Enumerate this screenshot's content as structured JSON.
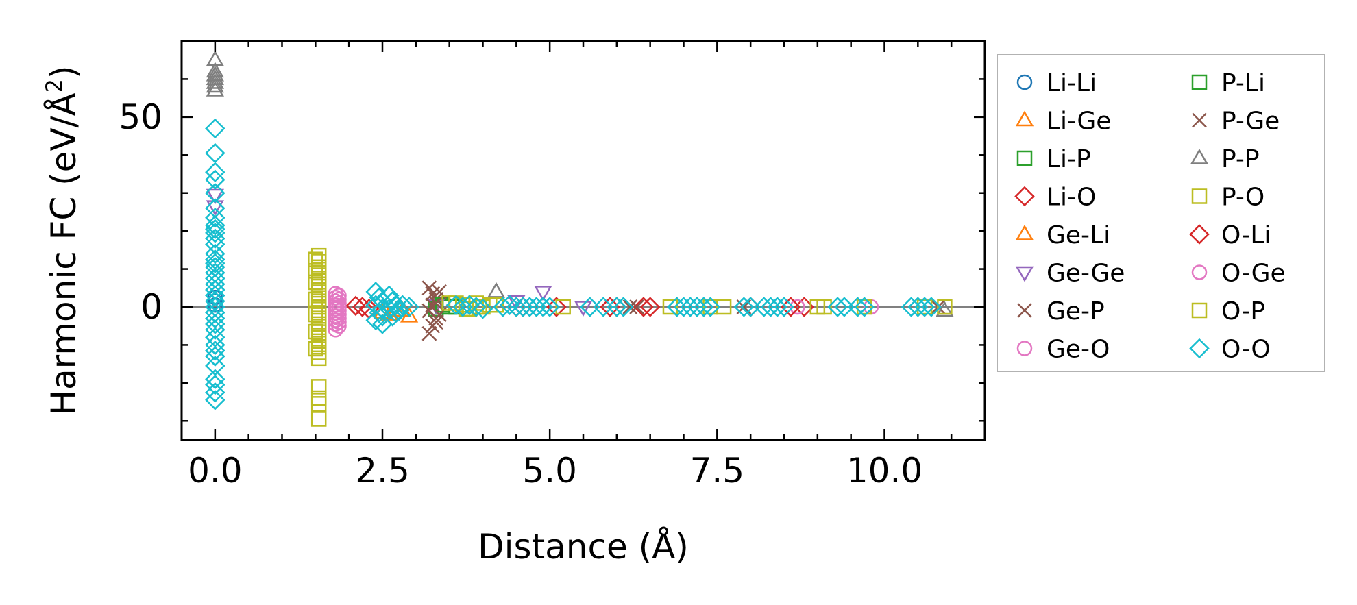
{
  "chart_data": {
    "type": "scatter",
    "title": "",
    "xlabel": "Distance (Å)",
    "ylabel": "Harmonic FC (eV/Å²)",
    "ylabel_parts": {
      "base": "Harmonic FC (eV/Å",
      "sup": "2",
      "close": ")"
    },
    "xlim": [
      -0.5,
      11.5
    ],
    "ylim": [
      -35,
      70
    ],
    "x_ticks": [
      0.0,
      2.5,
      5.0,
      7.5,
      10.0
    ],
    "x_tick_labels": [
      "0.0",
      "2.5",
      "5.0",
      "7.5",
      "10.0"
    ],
    "x_minor_step": 0.5,
    "y_ticks": [
      0,
      50
    ],
    "y_tick_labels": [
      "0",
      "50"
    ],
    "y_minor_step": 10,
    "grid": false,
    "zero_line": true,
    "legend_position": "outside-right",
    "legend_columns": 2,
    "series": [
      {
        "name": "Li-Li",
        "color": "#1f77b4",
        "marker": "circle",
        "points": [
          [
            0,
            2.5
          ],
          [
            0,
            1.5
          ],
          [
            0,
            0.5
          ]
        ]
      },
      {
        "name": "Li-Ge",
        "color": "#ff7f0e",
        "marker": "triangle-up",
        "points": [
          [
            2.5,
            -1.5
          ],
          [
            2.9,
            -2.5
          ],
          [
            2.7,
            -1.0
          ]
        ]
      },
      {
        "name": "Li-P",
        "color": "#2ca02c",
        "marker": "square",
        "points": [
          [
            3.3,
            -0.5
          ],
          [
            3.5,
            0
          ]
        ]
      },
      {
        "name": "Li-O",
        "color": "#d62728",
        "marker": "diamond",
        "points": [
          [
            2.1,
            0.3
          ],
          [
            2.3,
            -0.5
          ],
          [
            4.5,
            0
          ],
          [
            5.1,
            0
          ],
          [
            6.0,
            0
          ],
          [
            6.4,
            0
          ],
          [
            8.0,
            0
          ],
          [
            8.8,
            0
          ]
        ]
      },
      {
        "name": "Ge-Li",
        "color": "#ff7f0e",
        "marker": "triangle-up",
        "points": [
          [
            2.8,
            -1.0
          ],
          [
            2.6,
            -2.0
          ]
        ]
      },
      {
        "name": "Ge-Ge",
        "color": "#9467bd",
        "marker": "triangle-down",
        "points": [
          [
            0,
            29.5
          ],
          [
            0,
            26.5
          ],
          [
            4.5,
            1.5
          ],
          [
            4.9,
            4.0
          ],
          [
            3.3,
            0.5
          ],
          [
            5.5,
            0
          ]
        ]
      },
      {
        "name": "Ge-P",
        "color": "#8c564b",
        "marker": "x",
        "points": [
          [
            3.2,
            5.0
          ],
          [
            3.25,
            3.5
          ],
          [
            3.3,
            2.0
          ],
          [
            3.25,
            0.5
          ],
          [
            3.2,
            -1.0
          ],
          [
            3.3,
            -3.0
          ],
          [
            3.25,
            -5.0
          ],
          [
            3.2,
            -7.0
          ],
          [
            6.2,
            0
          ],
          [
            7.9,
            0
          ],
          [
            10.8,
            0
          ]
        ]
      },
      {
        "name": "Ge-O",
        "color": "#e377c2",
        "marker": "circle",
        "points": [
          [
            1.8,
            3.5
          ],
          [
            1.8,
            2.5
          ],
          [
            1.8,
            1.5
          ],
          [
            1.8,
            0.5
          ],
          [
            1.8,
            -0.5
          ],
          [
            1.8,
            -1.5
          ],
          [
            1.8,
            -2.5
          ],
          [
            1.8,
            -3.5
          ],
          [
            1.8,
            -4.5
          ],
          [
            1.8,
            -6.0
          ],
          [
            8.7,
            0
          ],
          [
            9.8,
            0
          ]
        ]
      },
      {
        "name": "P-Li",
        "color": "#2ca02c",
        "marker": "square",
        "points": [
          [
            3.4,
            0.5
          ],
          [
            3.6,
            0
          ]
        ]
      },
      {
        "name": "P-Ge",
        "color": "#8c564b",
        "marker": "x",
        "points": [
          [
            3.35,
            4.0
          ],
          [
            3.3,
            1.0
          ],
          [
            3.35,
            -2.0
          ],
          [
            3.3,
            -4.0
          ],
          [
            6.3,
            0
          ]
        ]
      },
      {
        "name": "P-P",
        "color": "#7f7f7f",
        "marker": "triangle-up",
        "points": [
          [
            0,
            65.0
          ],
          [
            0,
            62.0
          ],
          [
            0,
            61.0
          ],
          [
            0,
            60.0
          ],
          [
            0,
            59.0
          ],
          [
            0,
            58.0
          ],
          [
            0,
            57.0
          ],
          [
            4.2,
            4.0
          ],
          [
            10.9,
            -1.0
          ]
        ]
      },
      {
        "name": "P-O",
        "color": "#bcbd22",
        "marker": "square",
        "points": [
          [
            1.55,
            13.5
          ],
          [
            1.55,
            12.0
          ],
          [
            1.55,
            10.5
          ],
          [
            1.55,
            9.0
          ],
          [
            1.55,
            7.5
          ],
          [
            1.55,
            6.0
          ],
          [
            1.55,
            4.5
          ],
          [
            1.55,
            3.0
          ],
          [
            1.55,
            1.5
          ],
          [
            1.55,
            0
          ],
          [
            1.55,
            -1.5
          ],
          [
            1.55,
            -3.0
          ],
          [
            1.55,
            -4.5
          ],
          [
            1.55,
            -6.0
          ],
          [
            1.55,
            -7.5
          ],
          [
            1.55,
            -9.0
          ],
          [
            1.55,
            -10.5
          ],
          [
            1.55,
            -12.0
          ],
          [
            1.55,
            -13.5
          ],
          [
            1.55,
            -21.0
          ],
          [
            1.55,
            -24.0
          ],
          [
            1.55,
            -25.5
          ],
          [
            1.55,
            -29.5
          ],
          [
            3.5,
            1.0
          ],
          [
            3.7,
            0.5
          ],
          [
            3.9,
            1.0
          ],
          [
            3.8,
            -0.5
          ],
          [
            4.0,
            0
          ],
          [
            4.2,
            0.5
          ],
          [
            5.2,
            0
          ],
          [
            6.8,
            0
          ],
          [
            7.4,
            0
          ],
          [
            9.0,
            0
          ],
          [
            9.7,
            0
          ],
          [
            10.9,
            0
          ]
        ]
      },
      {
        "name": "O-Li",
        "color": "#d62728",
        "marker": "diamond",
        "points": [
          [
            2.2,
            0
          ],
          [
            4.6,
            0
          ],
          [
            5.9,
            0
          ],
          [
            6.5,
            0
          ],
          [
            8.6,
            0
          ]
        ]
      },
      {
        "name": "O-Ge",
        "color": "#e377c2",
        "marker": "circle",
        "points": [
          [
            1.85,
            3.0
          ],
          [
            1.85,
            2.0
          ],
          [
            1.85,
            1.0
          ],
          [
            1.85,
            0
          ],
          [
            1.85,
            -1.0
          ],
          [
            1.85,
            -2.0
          ],
          [
            1.85,
            -3.0
          ],
          [
            1.85,
            -4.0
          ],
          [
            1.85,
            -5.0
          ]
        ]
      },
      {
        "name": "O-P",
        "color": "#bcbd22",
        "marker": "square",
        "points": [
          [
            1.5,
            12.5
          ],
          [
            1.5,
            9.5
          ],
          [
            1.5,
            6.5
          ],
          [
            1.5,
            2.0
          ],
          [
            1.5,
            -2.0
          ],
          [
            1.5,
            -6.5
          ],
          [
            1.5,
            -11.0
          ],
          [
            3.6,
            1.0
          ],
          [
            3.75,
            -0.5
          ],
          [
            3.95,
            0
          ],
          [
            4.1,
            0.5
          ],
          [
            7.6,
            0
          ],
          [
            9.1,
            0
          ],
          [
            10.6,
            0
          ]
        ]
      },
      {
        "name": "O-O",
        "color": "#17becf",
        "marker": "diamond",
        "points": [
          [
            0,
            47.0
          ],
          [
            0,
            40.5
          ],
          [
            0,
            35.5
          ],
          [
            0,
            33.5
          ],
          [
            0,
            30.0
          ],
          [
            0,
            26.0
          ],
          [
            0,
            23.5
          ],
          [
            0,
            21.5
          ],
          [
            0,
            20.5
          ],
          [
            0,
            19.5
          ],
          [
            0,
            18.0
          ],
          [
            0,
            16.5
          ],
          [
            0,
            14.0
          ],
          [
            0,
            12.5
          ],
          [
            0,
            11.5
          ],
          [
            0,
            10.5
          ],
          [
            0,
            9.0
          ],
          [
            0,
            7.5
          ],
          [
            0,
            6.0
          ],
          [
            0,
            4.5
          ],
          [
            0,
            3.0
          ],
          [
            0,
            1.5
          ],
          [
            0,
            0
          ],
          [
            0,
            -1.5
          ],
          [
            0,
            -3.0
          ],
          [
            0,
            -4.5
          ],
          [
            0,
            -6.0
          ],
          [
            0,
            -8.0
          ],
          [
            0,
            -10.0
          ],
          [
            0,
            -11.5
          ],
          [
            0,
            -13.0
          ],
          [
            0,
            -15.5
          ],
          [
            0,
            -19.0
          ],
          [
            0,
            -20.5
          ],
          [
            0,
            -22.5
          ],
          [
            0,
            -24.5
          ],
          [
            2.4,
            4.0
          ],
          [
            2.45,
            2.5
          ],
          [
            2.5,
            1.5
          ],
          [
            2.4,
            0.5
          ],
          [
            2.5,
            -0.5
          ],
          [
            2.45,
            -1.5
          ],
          [
            2.5,
            -2.5
          ],
          [
            2.4,
            -3.5
          ],
          [
            2.5,
            -4.5
          ],
          [
            2.6,
            3.0
          ],
          [
            2.65,
            1.5
          ],
          [
            2.7,
            0.5
          ],
          [
            2.6,
            -0.5
          ],
          [
            2.7,
            -1.5
          ],
          [
            2.65,
            -2.5
          ],
          [
            2.8,
            0.5
          ],
          [
            2.9,
            0
          ],
          [
            2.75,
            -1.0
          ],
          [
            3.6,
            0.5
          ],
          [
            3.7,
            0
          ],
          [
            3.8,
            0.5
          ],
          [
            3.9,
            0
          ],
          [
            4.0,
            -0.5
          ],
          [
            4.3,
            0
          ],
          [
            4.4,
            0.5
          ],
          [
            4.5,
            0
          ],
          [
            4.6,
            0
          ],
          [
            4.7,
            0
          ],
          [
            4.8,
            0
          ],
          [
            4.9,
            0
          ],
          [
            5.0,
            0
          ],
          [
            5.6,
            0
          ],
          [
            5.8,
            0
          ],
          [
            6.0,
            0
          ],
          [
            6.1,
            0
          ],
          [
            6.9,
            0
          ],
          [
            7.0,
            0
          ],
          [
            7.1,
            0
          ],
          [
            7.2,
            0
          ],
          [
            7.3,
            0
          ],
          [
            7.4,
            0
          ],
          [
            7.9,
            0
          ],
          [
            8.0,
            0
          ],
          [
            8.2,
            0
          ],
          [
            8.3,
            0
          ],
          [
            8.4,
            0
          ],
          [
            8.5,
            0
          ],
          [
            9.3,
            0
          ],
          [
            9.4,
            0
          ],
          [
            9.6,
            0
          ],
          [
            9.7,
            0
          ],
          [
            10.4,
            0
          ],
          [
            10.5,
            0
          ],
          [
            10.6,
            0
          ],
          [
            10.7,
            0
          ]
        ]
      }
    ]
  }
}
